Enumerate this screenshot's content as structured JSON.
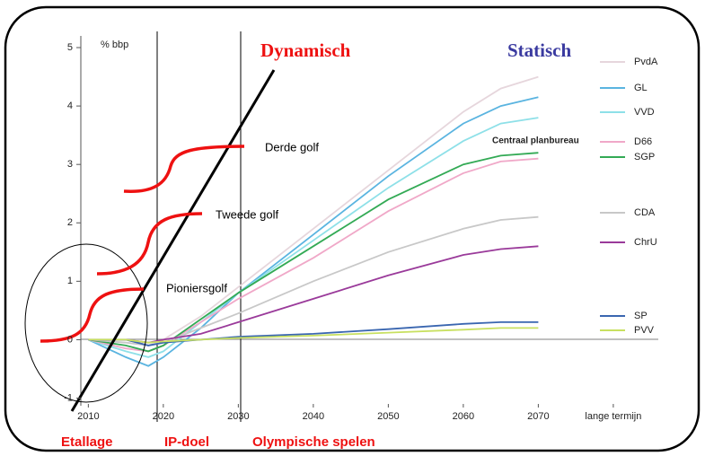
{
  "chart_data": {
    "type": "line",
    "y_label": "% bbp",
    "x": [
      2010,
      2015,
      2018,
      2020,
      2025,
      2030,
      2040,
      2050,
      2060,
      2065,
      2070
    ],
    "xlim": [
      2009,
      2086
    ],
    "xticks": [
      2010,
      2020,
      2030,
      2040,
      2050,
      2060,
      2070,
      {
        "value": 2080,
        "label": "lange termijn"
      }
    ],
    "ylim": [
      -1.1,
      5.2
    ],
    "yticks": [
      -1,
      0,
      1,
      2,
      3,
      4,
      5
    ],
    "series": [
      {
        "name": "PvdA",
        "color": "#e6d6dc",
        "values": [
          0,
          0,
          -0.1,
          0,
          0.4,
          0.9,
          1.9,
          2.9,
          3.9,
          4.3,
          4.5
        ]
      },
      {
        "name": "GL",
        "color": "#5ab4e0",
        "values": [
          0,
          -0.3,
          -0.45,
          -0.3,
          0.2,
          0.8,
          1.8,
          2.8,
          3.7,
          4.0,
          4.15
        ]
      },
      {
        "name": "VVD",
        "color": "#8ee0e8",
        "values": [
          0,
          -0.2,
          -0.3,
          -0.2,
          0.3,
          0.8,
          1.7,
          2.6,
          3.4,
          3.7,
          3.8
        ]
      },
      {
        "name": "D66",
        "color": "#f0a8c8",
        "values": [
          0,
          -0.15,
          -0.2,
          -0.1,
          0.3,
          0.7,
          1.4,
          2.2,
          2.85,
          3.05,
          3.1
        ]
      },
      {
        "name": "SGP",
        "color": "#33aa55",
        "values": [
          0,
          -0.1,
          -0.2,
          -0.1,
          0.35,
          0.8,
          1.6,
          2.4,
          3.0,
          3.15,
          3.2
        ]
      },
      {
        "name": "CDA",
        "color": "#c8c8c8",
        "values": [
          0,
          -0.05,
          -0.1,
          -0.05,
          0.2,
          0.45,
          1.0,
          1.5,
          1.9,
          2.05,
          2.1
        ]
      },
      {
        "name": "ChrU",
        "color": "#9a3a9a",
        "values": [
          0,
          0,
          -0.05,
          0,
          0.1,
          0.3,
          0.7,
          1.1,
          1.45,
          1.55,
          1.6
        ]
      },
      {
        "name": "SP",
        "color": "#3a66b0",
        "values": [
          0,
          0,
          -0.1,
          -0.05,
          0,
          0.05,
          0.1,
          0.18,
          0.27,
          0.3,
          0.3
        ]
      },
      {
        "name": "PVV",
        "color": "#c8e060",
        "values": [
          0,
          0,
          -0.05,
          -0.03,
          0,
          0.03,
          0.07,
          0.12,
          0.17,
          0.2,
          0.2
        ]
      }
    ],
    "annotations": {
      "dynamic": "Dynamisch",
      "static": "Statisch",
      "source": "Centraal planbureau",
      "wave3": "Derde golf",
      "wave2": "Tweede golf",
      "wave1": "Pioniersgolf",
      "phase1": "Etallage",
      "phase2": "IP-doel",
      "phase3": "Olympische spelen"
    }
  }
}
